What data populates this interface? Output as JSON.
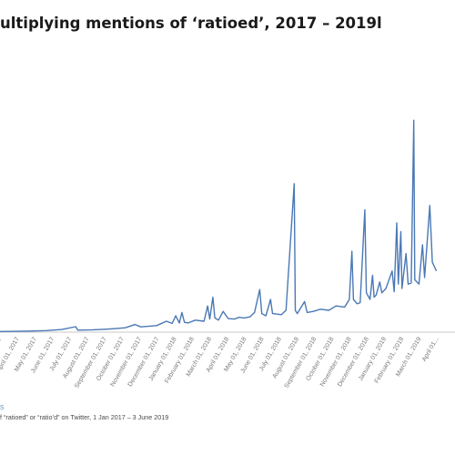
{
  "chart_data": {
    "type": "line",
    "title": "ultiplying mentions of ‘ratioed’, 2017 – 2019l",
    "xlabel": "",
    "ylabel": "",
    "line_color": "#4a78b5",
    "grid": false,
    "x_tick_labels": [
      "...17",
      "April 01, 2017",
      "May 01, 2017",
      "June 01, 2017",
      "July 01, 2017",
      "August 01, 2017",
      "September 01, 2017",
      "October 01, 2017",
      "November 01, 2017",
      "December 01, 2017",
      "January 01, 2018",
      "February 01, 2018",
      "March 01, 2018",
      "April 01, 2018",
      "May 01, 2018",
      "June 01, 2018",
      "July 01, 2018",
      "August 01, 2018",
      "September 01, 2018",
      "October 01, 2018",
      "November 01, 2018",
      "December 01, 2018",
      "January 01, 2019",
      "February 01, 2019",
      "March 01, 2019",
      "April 01..."
    ],
    "x_start": "2017-01-01",
    "x_end": "2019-06-03",
    "ylim": [
      0,
      100
    ],
    "series": [
      {
        "points": [
          [
            "2017-01-01",
            0.3
          ],
          [
            "2017-03-01",
            0.5
          ],
          [
            "2017-04-01",
            0.7
          ],
          [
            "2017-05-01",
            1.2
          ],
          [
            "2017-05-28",
            2.5
          ],
          [
            "2017-06-01",
            0.9
          ],
          [
            "2017-07-01",
            1.1
          ],
          [
            "2017-08-01",
            1.4
          ],
          [
            "2017-09-01",
            2.0
          ],
          [
            "2017-09-20",
            3.5
          ],
          [
            "2017-10-01",
            2.4
          ],
          [
            "2017-11-01",
            3.0
          ],
          [
            "2017-11-20",
            5.0
          ],
          [
            "2017-12-01",
            4.0
          ],
          [
            "2017-12-08",
            7.5
          ],
          [
            "2017-12-15",
            4.2
          ],
          [
            "2017-12-20",
            9.0
          ],
          [
            "2017-12-25",
            4.5
          ],
          [
            "2018-01-01",
            4.2
          ],
          [
            "2018-01-15",
            5.5
          ],
          [
            "2018-02-01",
            5.0
          ],
          [
            "2018-02-08",
            12.0
          ],
          [
            "2018-02-12",
            6.0
          ],
          [
            "2018-02-18",
            16.0
          ],
          [
            "2018-02-22",
            6.5
          ],
          [
            "2018-03-01",
            5.5
          ],
          [
            "2018-03-10",
            9.5
          ],
          [
            "2018-03-20",
            6.2
          ],
          [
            "2018-04-01",
            6.0
          ],
          [
            "2018-04-10",
            6.8
          ],
          [
            "2018-04-20",
            6.5
          ],
          [
            "2018-05-01",
            7.0
          ],
          [
            "2018-05-10",
            9.0
          ],
          [
            "2018-05-20",
            19.5
          ],
          [
            "2018-05-24",
            8.5
          ],
          [
            "2018-06-01",
            7.5
          ],
          [
            "2018-06-10",
            15.0
          ],
          [
            "2018-06-14",
            8.5
          ],
          [
            "2018-07-01",
            8.0
          ],
          [
            "2018-07-10",
            10.0
          ],
          [
            "2018-07-26",
            68.0
          ],
          [
            "2018-07-28",
            10.0
          ],
          [
            "2018-08-01",
            8.5
          ],
          [
            "2018-08-15",
            14.0
          ],
          [
            "2018-08-20",
            9.0
          ],
          [
            "2018-09-01",
            9.5
          ],
          [
            "2018-09-15",
            10.5
          ],
          [
            "2018-10-01",
            10.0
          ],
          [
            "2018-10-15",
            12.0
          ],
          [
            "2018-11-01",
            11.5
          ],
          [
            "2018-11-10",
            15.0
          ],
          [
            "2018-11-15",
            37.0
          ],
          [
            "2018-11-18",
            15.0
          ],
          [
            "2018-11-25",
            13.0
          ],
          [
            "2018-12-01",
            13.5
          ],
          [
            "2018-12-10",
            56.0
          ],
          [
            "2018-12-13",
            18.0
          ],
          [
            "2018-12-20",
            15.0
          ],
          [
            "2018-12-25",
            26.0
          ],
          [
            "2018-12-28",
            16.0
          ],
          [
            "2019-01-01",
            17.0
          ],
          [
            "2019-01-08",
            23.0
          ],
          [
            "2019-01-12",
            18.0
          ],
          [
            "2019-01-20",
            20.0
          ],
          [
            "2019-02-01",
            28.0
          ],
          [
            "2019-02-05",
            18.5
          ],
          [
            "2019-02-10",
            50.0
          ],
          [
            "2019-02-13",
            22.0
          ],
          [
            "2019-02-18",
            46.0
          ],
          [
            "2019-02-20",
            20.0
          ],
          [
            "2019-02-28",
            36.0
          ],
          [
            "2019-03-04",
            22.0
          ],
          [
            "2019-03-10",
            22.5
          ],
          [
            "2019-03-15",
            97.0
          ],
          [
            "2019-03-17",
            24.0
          ],
          [
            "2019-03-25",
            22.0
          ],
          [
            "2019-04-01",
            40.0
          ],
          [
            "2019-04-05",
            25.0
          ],
          [
            "2019-04-15",
            58.0
          ],
          [
            "2019-04-20",
            32.0
          ],
          [
            "2019-04-28",
            28.0
          ]
        ]
      }
    ]
  },
  "source_mark": "s",
  "source_text": "f “ratioed” or “ratio’d” on Twitter, 1 Jan 2017 – 3 June 2019"
}
